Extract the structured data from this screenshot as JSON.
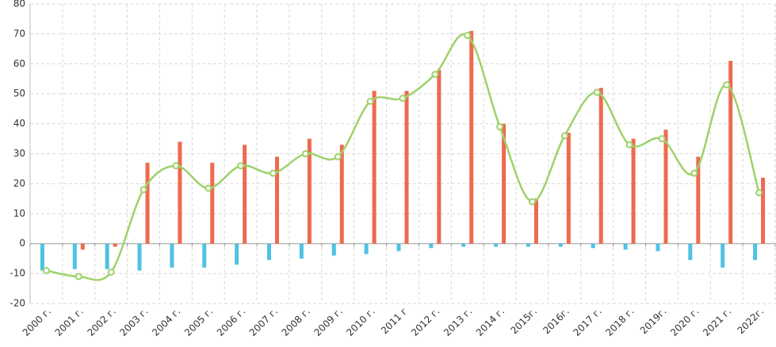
{
  "chart_data": {
    "type": "bar-line",
    "categories": [
      "2000 г.",
      "2001 г.",
      "2002 г.",
      "2003 г.",
      "2004 г.",
      "2005 г.",
      "2006 г.",
      "2007 г.",
      "2008 г.",
      "2009 г.",
      "2010 г.",
      "2011 г",
      "2012 г.",
      "2013 г.",
      "2014 г.",
      "2015г.",
      "2016г.",
      "2017 г.",
      "2018 г.",
      "2019г.",
      "2020 г.",
      "2021 г.",
      "2022г."
    ],
    "series": [
      {
        "type": "bar",
        "color": "#4fc1e4",
        "values": [
          -9,
          -8.5,
          -8.5,
          -9,
          -8,
          -8,
          -7,
          -5.5,
          -5,
          -4,
          -3.5,
          -2.5,
          -1.5,
          -1,
          -1,
          -1,
          -1,
          -1.5,
          -2,
          -2.5,
          -5.5,
          -8,
          -5.5
        ]
      },
      {
        "type": "bar",
        "color": "#ee6a4e",
        "values": [
          0,
          -2,
          -1,
          27,
          34,
          27,
          33,
          29,
          35,
          33,
          51,
          51,
          58,
          71,
          40,
          15,
          37,
          52,
          35,
          38,
          29,
          61,
          22
        ]
      },
      {
        "type": "line",
        "color": "#9dd26a",
        "values": [
          -9,
          -11,
          -9.5,
          18,
          26,
          18.5,
          26,
          23.5,
          30,
          29,
          47.5,
          48.5,
          56.5,
          69.5,
          39,
          14,
          36,
          50.5,
          33,
          35,
          23.5,
          53,
          17
        ]
      }
    ],
    "ylim": [
      -20,
      80
    ],
    "yticks": [
      -20,
      -10,
      0,
      10,
      20,
      30,
      40,
      50,
      60,
      70,
      80
    ],
    "grid": true
  }
}
